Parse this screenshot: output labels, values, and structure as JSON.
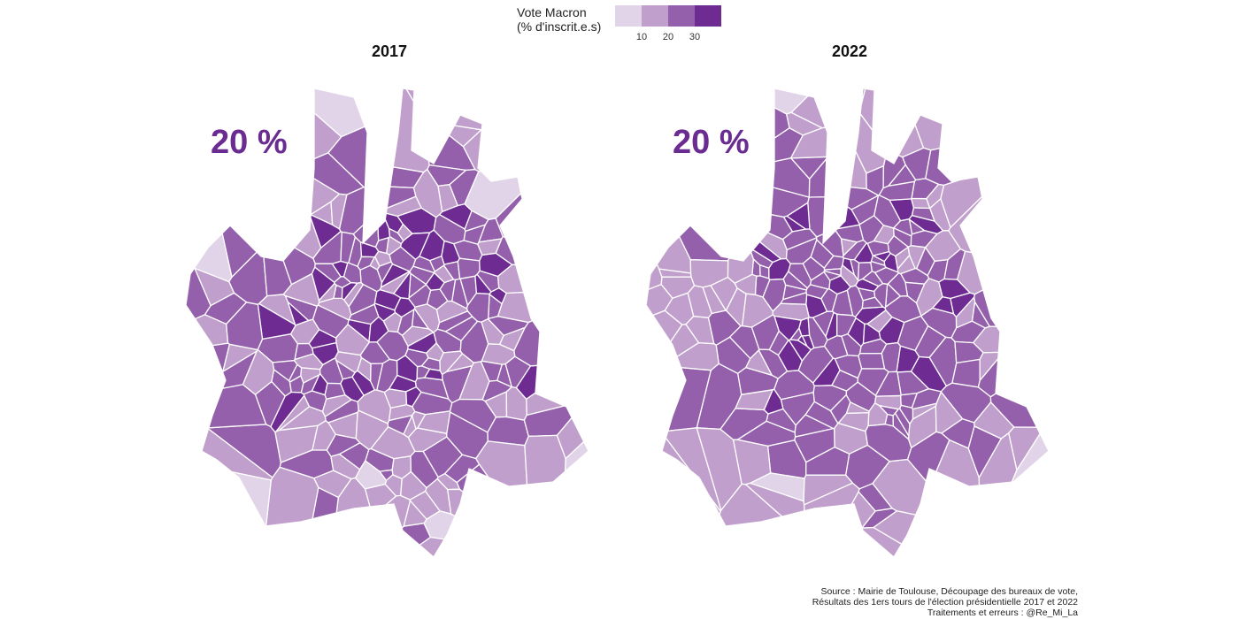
{
  "legend": {
    "title": "Vote Macron\n(% d'inscrit.e.s)",
    "ticks": [
      "10",
      "20",
      "30"
    ],
    "colors": [
      "#e1d3e8",
      "#c19fcc",
      "#9460ab",
      "#6e2b92"
    ]
  },
  "panels": [
    {
      "title": "2017",
      "value_label": "20 %",
      "seed": 17
    },
    {
      "title": "2022",
      "value_label": "20 %",
      "seed": 22
    }
  ],
  "caption": {
    "line1": "Source : Mairie de Toulouse, Découpage des bureaux de vote,",
    "line2": "Résultats des 1ers tours de l'élection présidentielle 2017 et 2022",
    "line3": "Traitements et erreurs : @Re_Mi_La"
  }
}
